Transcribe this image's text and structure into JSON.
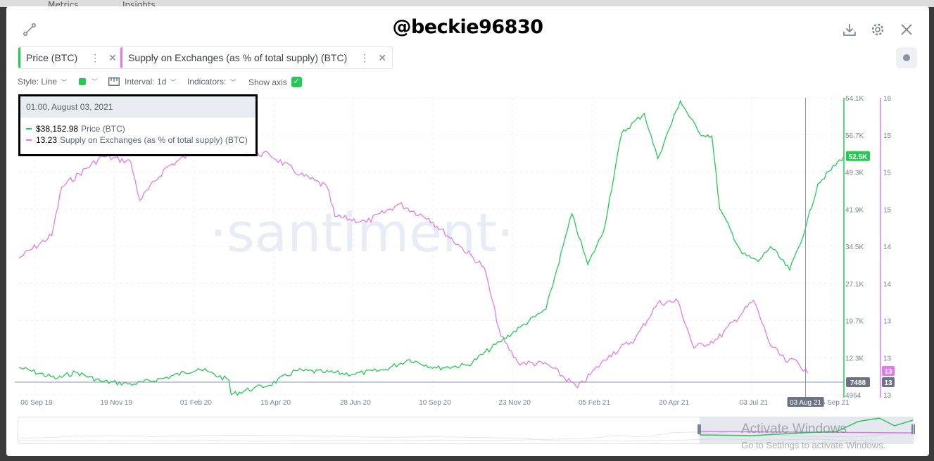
{
  "background": {
    "tabs": [
      "Metrics",
      "Insights"
    ]
  },
  "header": {
    "title": "@beckie96830",
    "icons": [
      "connector-icon",
      "download-icon",
      "gear-icon",
      "close-icon"
    ]
  },
  "metrics": [
    {
      "label": "Price (BTC)",
      "color": "#26c953"
    },
    {
      "label": "Supply on Exchanges (as % of total supply) (BTC)",
      "color": "#e17be8"
    }
  ],
  "toolbar": {
    "style_label": "Style: Line",
    "interval_label": "Interval: 1d",
    "indicators_label": "Indicators:",
    "show_axis_label": "Show axis",
    "show_axis_checked": true
  },
  "tooltip": {
    "date": "01:00, August 03, 2021",
    "rows": [
      {
        "value": "$38,152.98",
        "name": "Price (BTC)",
        "color": "#26c953"
      },
      {
        "value": "13.23",
        "name": "Supply on Exchanges (as % of total supply) (BTC)",
        "color": "#e17be8"
      }
    ]
  },
  "watermark": "·santiment·",
  "activate_windows": {
    "title": "Activate Windows",
    "subtitle": "Go to Settings to activate Windows."
  },
  "chart_data": {
    "type": "line",
    "x_tick_labels": [
      "06 Sep 19",
      "19 Nov 19",
      "01 Feb 20",
      "15 Apr 20",
      "28 Jun 20",
      "10 Sep 20",
      "23 Nov 20",
      "05 Feb 21",
      "20 Apr 21",
      "03 Jul 21",
      "06 Sep 21"
    ],
    "hover_x_label": "03 Aug 21",
    "price_axis": {
      "tick_labels": [
        "64.1K",
        "56.7K",
        "49.3K",
        "41.9K",
        "34.5K",
        "27.1K",
        "19.7K",
        "12.3K",
        "4964"
      ],
      "ylim": [
        4964,
        64100
      ],
      "last_value_label": "52.5K",
      "hover_value_label": "7488",
      "color": "#26c953"
    },
    "supply_axis": {
      "tick_labels": [
        "16",
        "15",
        "15",
        "15",
        "14",
        "14",
        "13",
        "13",
        "13"
      ],
      "ylim": [
        12.7,
        16
      ],
      "last_value_label": "13",
      "hover_value_label": "13",
      "color": "#e17be8"
    },
    "series": [
      {
        "name": "Price (BTC)",
        "color": "#26c953",
        "x": [
          "2019-09-06",
          "2019-10-10",
          "2019-10-26",
          "2019-11-19",
          "2019-12-17",
          "2020-01-13",
          "2020-02-12",
          "2020-03-10",
          "2020-03-12",
          "2020-04-01",
          "2020-04-15",
          "2020-05-08",
          "2020-06-01",
          "2020-06-28",
          "2020-07-25",
          "2020-08-17",
          "2020-09-10",
          "2020-10-08",
          "2020-11-05",
          "2020-11-23",
          "2020-12-16",
          "2021-01-08",
          "2021-01-22",
          "2021-02-05",
          "2021-02-21",
          "2021-03-13",
          "2021-03-25",
          "2021-04-14",
          "2021-05-01",
          "2021-05-12",
          "2021-05-19",
          "2021-06-08",
          "2021-06-22",
          "2021-07-03",
          "2021-07-20",
          "2021-08-03",
          "2021-08-14",
          "2021-09-06"
        ],
        "values": [
          10400,
          8200,
          9500,
          7600,
          7100,
          8300,
          10200,
          7900,
          5000,
          6300,
          6900,
          9800,
          9500,
          9100,
          9900,
          12000,
          10300,
          10900,
          15500,
          18400,
          22000,
          41000,
          30900,
          37500,
          57000,
          61000,
          52000,
          63500,
          57000,
          56500,
          42000,
          33000,
          31500,
          34500,
          29800,
          38153,
          47000,
          52500
        ]
      },
      {
        "name": "Supply on Exchanges (as % of total supply) (BTC)",
        "color": "#e17be8",
        "x": [
          "2019-09-06",
          "2019-10-05",
          "2019-10-14",
          "2019-11-19",
          "2019-12-14",
          "2019-12-22",
          "2020-01-14",
          "2020-02-12",
          "2020-03-10",
          "2020-03-24",
          "2020-04-15",
          "2020-05-12",
          "2020-06-05",
          "2020-06-12",
          "2020-07-10",
          "2020-08-08",
          "2020-09-03",
          "2020-10-01",
          "2020-10-22",
          "2020-11-06",
          "2020-11-21",
          "2020-12-17",
          "2021-01-13",
          "2021-02-10",
          "2021-03-05",
          "2021-03-25",
          "2021-04-12",
          "2021-04-26",
          "2021-05-17",
          "2021-06-18",
          "2021-07-03",
          "2021-07-18",
          "2021-07-25",
          "2021-08-05"
        ],
        "values": [
          14.22,
          14.47,
          15.01,
          15.35,
          15.29,
          14.86,
          15.22,
          15.43,
          15.48,
          15.39,
          15.37,
          15.15,
          15.01,
          14.68,
          14.62,
          14.82,
          14.66,
          14.35,
          14.12,
          13.35,
          13.06,
          13.04,
          12.78,
          13.14,
          13.32,
          13.72,
          13.74,
          13.22,
          13.32,
          13.75,
          13.25,
          13.06,
          13.09,
          12.94
        ]
      }
    ],
    "hover": {
      "x": "2021-08-03",
      "price": 38152.98,
      "supply": 13.23
    },
    "grid": true,
    "legend": "top-left"
  }
}
